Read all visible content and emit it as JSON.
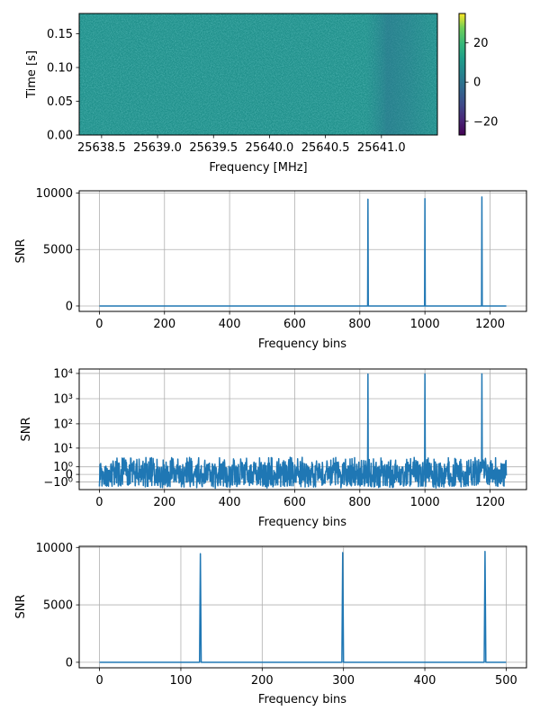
{
  "chart_data": [
    {
      "type": "heatmap",
      "xlabel": "Frequency [MHz]",
      "ylabel": "Time [s]",
      "xlim": [
        25638.3,
        25641.5
      ],
      "ylim": [
        0.0,
        0.18
      ],
      "xticks": [
        25638.5,
        25639.0,
        25639.5,
        25640.0,
        25640.5,
        25641.0
      ],
      "xtick_labels": [
        "25638.5",
        "25639.0",
        "25639.5",
        "25640.0",
        "25640.5",
        "25641.0"
      ],
      "yticks": [
        0.0,
        0.05,
        0.1,
        0.15
      ],
      "ytick_labels": [
        "0.00",
        "0.05",
        "0.10",
        "0.15"
      ],
      "colorbar": {
        "colormap": "viridis",
        "range": [
          -27,
          35
        ],
        "ticks": [
          -20,
          0,
          20
        ],
        "tick_labels": [
          "−20",
          "0",
          "20"
        ]
      },
      "dominant_color": "#21918c",
      "grid": false
    },
    {
      "type": "line",
      "xlabel": "Frequency bins",
      "ylabel": "SNR",
      "xlim": [
        -62,
        1312
      ],
      "ylim": [
        -480,
        10200
      ],
      "xticks": [
        0,
        200,
        400,
        600,
        800,
        1000,
        1200
      ],
      "yticks": [
        0,
        5000,
        10000
      ],
      "ytick_labels": [
        "0",
        "5000",
        "10000"
      ],
      "grid": true,
      "color": "#1f77b4",
      "x_range": [
        0,
        1250
      ],
      "baseline": 0,
      "peaks": [
        {
          "x": 825,
          "y": 9450
        },
        {
          "x": 1000,
          "y": 9500
        },
        {
          "x": 1175,
          "y": 9650
        }
      ]
    },
    {
      "type": "line",
      "yscale": "symlog",
      "xlabel": "Frequency bins",
      "ylabel": "SNR",
      "xlim": [
        -62,
        1312
      ],
      "ylim": [
        -3,
        15000
      ],
      "xticks": [
        0,
        200,
        400,
        600,
        800,
        1000,
        1200
      ],
      "yticks": [
        -1,
        0,
        1,
        10,
        100,
        1000,
        10000
      ],
      "ytick_labels": [
        "−10⁰",
        "0",
        "10⁰",
        "10¹",
        "10²",
        "10³",
        "10⁴"
      ],
      "grid": true,
      "color": "#1f77b4",
      "x_range": [
        0,
        1250
      ],
      "noise_range": [
        -2,
        3.5
      ],
      "peaks": [
        {
          "x": 825,
          "y": 9450
        },
        {
          "x": 1000,
          "y": 9500
        },
        {
          "x": 1175,
          "y": 9650
        }
      ]
    },
    {
      "type": "line",
      "xlabel": "Frequency bins",
      "ylabel": "SNR",
      "xlim": [
        -25,
        525
      ],
      "ylim": [
        -480,
        10100
      ],
      "xticks": [
        0,
        100,
        200,
        300,
        400,
        500
      ],
      "yticks": [
        0,
        5000,
        10000
      ],
      "ytick_labels": [
        "0",
        "5000",
        "10000"
      ],
      "grid": true,
      "color": "#1f77b4",
      "x_range": [
        0,
        500
      ],
      "baseline": 0,
      "peaks": [
        {
          "x": 124,
          "y": 9450
        },
        {
          "x": 299,
          "y": 9550
        },
        {
          "x": 474,
          "y": 9650
        }
      ]
    }
  ]
}
